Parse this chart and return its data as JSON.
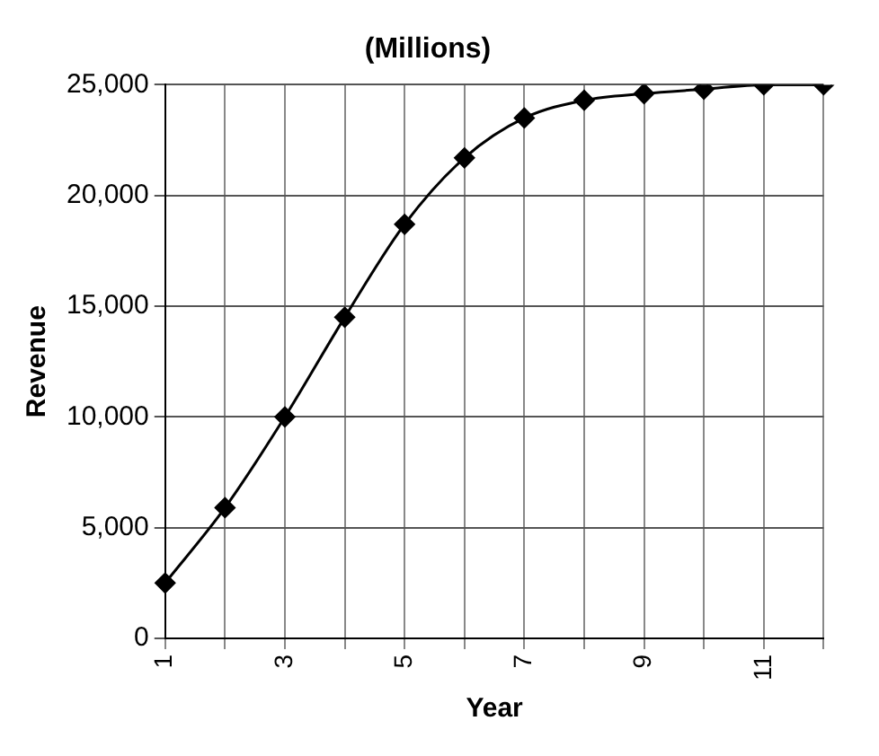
{
  "chart_data": {
    "type": "line",
    "title": "(Millions)",
    "xlabel": "Year",
    "ylabel": "Revenue",
    "categories": [
      "1",
      null,
      "3",
      null,
      "5",
      null,
      "7",
      null,
      "9",
      null,
      "11",
      null
    ],
    "series": [
      {
        "color": "#000000",
        "values": [
          2500,
          5900,
          10000,
          14500,
          18700,
          21700,
          23500,
          24300,
          24600,
          24800,
          25000,
          25000
        ]
      }
    ],
    "ylim": [
      0,
      25000
    ],
    "yticks": [
      0,
      {
        "value": 5000,
        "label": "5,000"
      },
      {
        "value": 10000,
        "label": "10,000"
      },
      {
        "value": 15000,
        "label": "15,000"
      },
      {
        "value": 20000,
        "label": "20,000"
      },
      {
        "value": 25000,
        "label": "25,000"
      }
    ],
    "grid": true,
    "legend": false,
    "marker": "diamond",
    "line_style": "solid"
  }
}
